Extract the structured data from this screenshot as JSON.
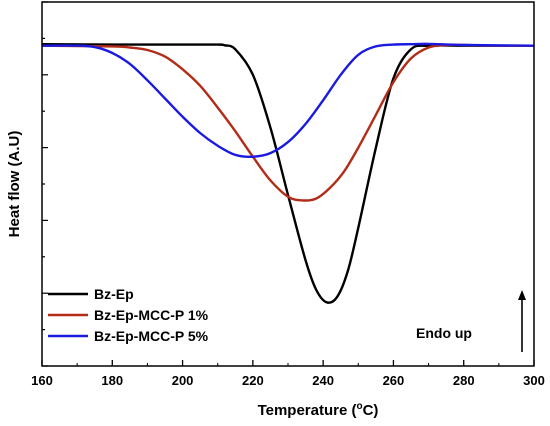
{
  "chart_data": {
    "type": "line",
    "xlabel_main": "Temperature (",
    "xlabel_sup": "o",
    "xlabel_end": "C)",
    "ylabel": "Heat flow (A.U)",
    "xlim": [
      160,
      300
    ],
    "xticks": [
      160,
      180,
      200,
      220,
      240,
      260,
      280,
      300
    ],
    "ylim": [
      0,
      1
    ],
    "grid": false,
    "legend_position": "bottom-left",
    "annotation": "Endo up",
    "series": [
      {
        "name": "Bz-Ep",
        "color": "#000000",
        "x": [
          160,
          180,
          200,
          210,
          212,
          215,
          220,
          225,
          230,
          235,
          238,
          241,
          244,
          247,
          250,
          255,
          260,
          265,
          270,
          280,
          290,
          300
        ],
        "y": [
          0.884,
          0.883,
          0.883,
          0.883,
          0.881,
          0.87,
          0.8,
          0.655,
          0.47,
          0.29,
          0.21,
          0.175,
          0.19,
          0.26,
          0.38,
          0.6,
          0.79,
          0.87,
          0.88,
          0.88,
          0.88,
          0.88
        ]
      },
      {
        "name": "Bz-Ep-MCC-P 1%",
        "color": "#b22c18",
        "x": [
          160,
          180,
          185,
          190,
          195,
          200,
          205,
          210,
          215,
          220,
          225,
          230,
          234,
          238,
          242,
          246,
          250,
          255,
          260,
          265,
          270,
          275,
          280,
          290,
          300
        ],
        "y": [
          0.88,
          0.878,
          0.875,
          0.868,
          0.85,
          0.815,
          0.77,
          0.71,
          0.645,
          0.575,
          0.51,
          0.465,
          0.455,
          0.46,
          0.49,
          0.535,
          0.6,
          0.69,
          0.78,
          0.845,
          0.875,
          0.882,
          0.882,
          0.88,
          0.88
        ]
      },
      {
        "name": "Bz-Ep-MCC-P 5%",
        "color": "#1a1ae0",
        "x": [
          160,
          170,
          175,
          180,
          185,
          190,
          195,
          200,
          205,
          210,
          215,
          220,
          225,
          230,
          235,
          240,
          245,
          250,
          255,
          260,
          265,
          270,
          280,
          300
        ],
        "y": [
          0.88,
          0.88,
          0.876,
          0.86,
          0.83,
          0.785,
          0.735,
          0.685,
          0.64,
          0.605,
          0.58,
          0.575,
          0.585,
          0.615,
          0.665,
          0.73,
          0.8,
          0.855,
          0.878,
          0.883,
          0.884,
          0.885,
          0.882,
          0.88
        ]
      }
    ]
  }
}
